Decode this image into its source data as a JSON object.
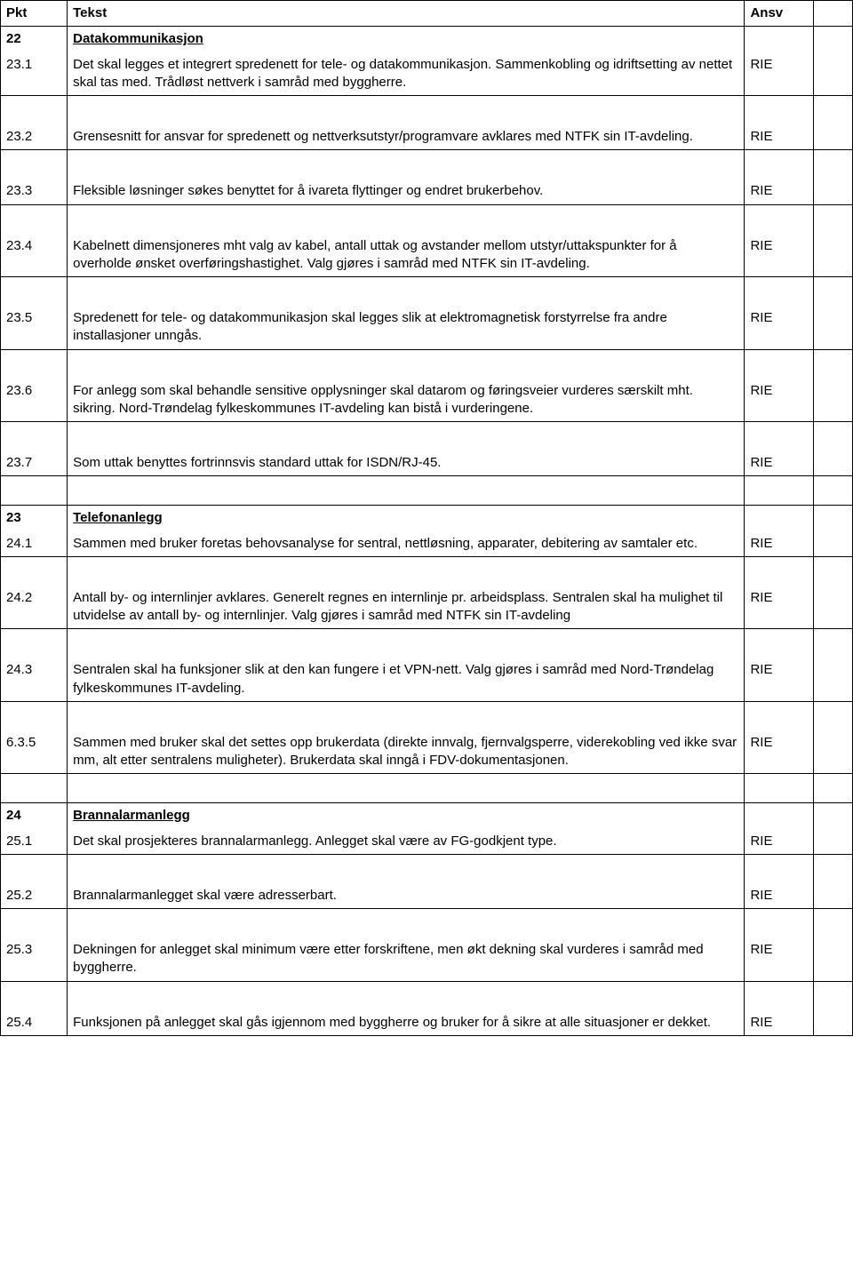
{
  "header": {
    "pkt": "Pkt",
    "tekst": "Tekst",
    "ansv": "Ansv"
  },
  "ansv_label": "RIE",
  "sections": {
    "s22": {
      "num": "22",
      "title": "Datakommunikasjon"
    },
    "s23": {
      "num": "23",
      "title": "Telefonanlegg"
    },
    "s24": {
      "num": "24",
      "title": "Brannalarmanlegg"
    }
  },
  "rows": {
    "r23_1": {
      "pkt": "23.1",
      "text": "Det skal legges et integrert spredenett for tele- og datakommunikasjon.   Sammenkobling og idriftsetting av nettet skal tas med.   Trådløst nettverk i samråd med byggherre."
    },
    "r23_2": {
      "pkt": "23.2",
      "text": "Grensesnitt for ansvar for spredenett og nettverksutstyr/programvare avklares med NTFK sin IT-avdeling."
    },
    "r23_3": {
      "pkt": "23.3",
      "text": "Fleksible løsninger søkes benyttet for å ivareta flyttinger og endret brukerbehov."
    },
    "r23_4": {
      "pkt": "23.4",
      "text": "Kabelnett dimensjoneres mht valg av kabel, antall uttak og avstander mellom utstyr/uttakspunkter for å overholde ønsket overføringshastighet.  Valg gjøres i samråd med NTFK sin IT-avdeling."
    },
    "r23_5": {
      "pkt": "23.5",
      "text": "Spredenett for tele- og datakommunikasjon skal legges slik at elektromagnetisk forstyrrelse fra andre installasjoner unngås."
    },
    "r23_6": {
      "pkt": "23.6",
      "text": "For anlegg som skal behandle sensitive opplysninger skal datarom og føringsveier vurderes særskilt mht. sikring.  Nord-Trøndelag fylkeskommunes IT-avdeling kan bistå i vurderingene."
    },
    "r23_7": {
      "pkt": "23.7",
      "text": "Som uttak benyttes fortrinnsvis standard uttak for ISDN/RJ-45."
    },
    "r24_1": {
      "pkt": "24.1",
      "text": "Sammen med bruker foretas behovsanalyse for sentral, nettløsning, apparater, debitering av samtaler etc."
    },
    "r24_2": {
      "pkt": "24.2",
      "text": "Antall by- og internlinjer avklares.  Generelt regnes en internlinje pr. arbeidsplass.  Sentralen skal ha mulighet til utvidelse av antall by- og internlinjer. Valg gjøres i samråd med NTFK sin IT-avdeling"
    },
    "r24_3": {
      "pkt": "24.3",
      "text": "Sentralen skal ha funksjoner slik at den kan fungere i et VPN-nett. Valg gjøres i samråd med Nord-Trøndelag fylkeskommunes IT-avdeling."
    },
    "r6_3_5": {
      "pkt": "6.3.5",
      "text": "Sammen med bruker skal det settes opp brukerdata (direkte innvalg, fjernvalgsperre, viderekobling ved ikke svar mm, alt etter sentralens muligheter).  Brukerdata skal inngå i FDV-dokumentasjonen."
    },
    "r25_1": {
      "pkt": "25.1",
      "text": "Det skal prosjekteres brannalarmanlegg.  Anlegget skal være av FG-godkjent type."
    },
    "r25_2": {
      "pkt": "25.2",
      "text": "Brannalarmanlegget skal være adresserbart."
    },
    "r25_3": {
      "pkt": "25.3",
      "text": "Dekningen for anlegget skal minimum være etter forskriftene, men økt dekning skal vurderes i samråd med byggherre."
    },
    "r25_4": {
      "pkt": "25.4",
      "text": "Funksjonen på anlegget skal gås igjennom med byggherre og bruker for å sikre at alle situasjoner er dekket."
    }
  }
}
